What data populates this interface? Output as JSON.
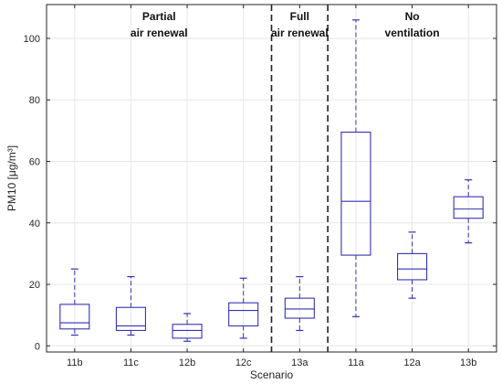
{
  "chart_data": {
    "type": "box",
    "title": "",
    "xlabel": "Scenario",
    "ylabel": "PM10 [μg/m³]",
    "ylim": [
      -2,
      111
    ],
    "yticks": [
      0,
      20,
      40,
      60,
      80,
      100
    ],
    "grid": true,
    "box_color": "#3333b3",
    "median_color": "#3333b3",
    "grid_color": "#e6e6e6",
    "separator_color": "#222222",
    "categories": [
      "11b",
      "11c",
      "12b",
      "12c",
      "13a",
      "11a",
      "12a",
      "13b"
    ],
    "boxes": [
      {
        "label": "11b",
        "whisker_low": 3.5,
        "q1": 5.5,
        "median": 7.5,
        "q3": 13.5,
        "whisker_high": 25
      },
      {
        "label": "11c",
        "whisker_low": 3.5,
        "q1": 5.0,
        "median": 6.5,
        "q3": 12.5,
        "whisker_high": 22.5
      },
      {
        "label": "12b",
        "whisker_low": 1.5,
        "q1": 2.5,
        "median": 5.0,
        "q3": 7.0,
        "whisker_high": 10.5
      },
      {
        "label": "12c",
        "whisker_low": 2.5,
        "q1": 6.5,
        "median": 11.5,
        "q3": 14.0,
        "whisker_high": 22.0
      },
      {
        "label": "13a",
        "whisker_low": 5.0,
        "q1": 9.0,
        "median": 12.0,
        "q3": 15.5,
        "whisker_high": 22.5
      },
      {
        "label": "11a",
        "whisker_low": 9.5,
        "q1": 29.5,
        "median": 47.0,
        "q3": 69.5,
        "whisker_high": 106.0
      },
      {
        "label": "12a",
        "whisker_low": 15.5,
        "q1": 21.5,
        "median": 25.0,
        "q3": 30.0,
        "whisker_high": 37.0
      },
      {
        "label": "13b",
        "whisker_low": 33.5,
        "q1": 41.5,
        "median": 44.5,
        "q3": 48.5,
        "whisker_high": 54.0
      }
    ],
    "separators_after": [
      "12c",
      "13a"
    ],
    "region_labels": [
      {
        "line1": "Partial",
        "line2": "air renewal",
        "from": "11b",
        "to": "12c"
      },
      {
        "line1": "Full",
        "line2": "air renewal",
        "from": "13a",
        "to": "13a"
      },
      {
        "line1": "No",
        "line2": "ventilation",
        "from": "11a",
        "to": "13b"
      }
    ]
  }
}
